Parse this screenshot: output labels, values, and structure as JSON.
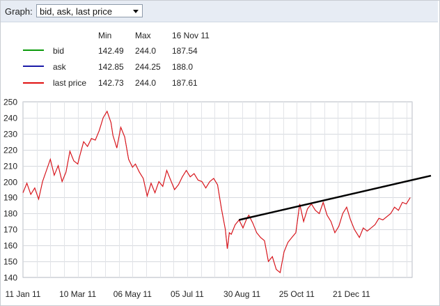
{
  "toolbar": {
    "graph_label": "Graph:",
    "graph_select_value": "bid, ask, last price"
  },
  "legend": {
    "headers": {
      "min": "Min",
      "max": "Max",
      "date": "16 Nov 11"
    },
    "rows": [
      {
        "name": "bid",
        "min": "142.49",
        "max": "244.0",
        "value": "187.54",
        "color": "#0a9a0a"
      },
      {
        "name": "ask",
        "min": "142.85",
        "max": "244.25",
        "value": "188.0",
        "color": "#1a1aa8"
      },
      {
        "name": "last price",
        "min": "142.73",
        "max": "244.0",
        "value": "187.61",
        "color": "#e01010"
      }
    ]
  },
  "chart_data": {
    "type": "line",
    "x_tick_labels": [
      "11 Jan 11",
      "10 Mar 11",
      "06 May 11",
      "05 Jul 11",
      "30 Aug 11",
      "25 Oct 11",
      "21 Dec 11"
    ],
    "y_ticks": [
      140,
      150,
      160,
      170,
      180,
      190,
      200,
      210,
      220,
      230,
      240,
      250
    ],
    "ylim": [
      140,
      250
    ],
    "xlim": [
      "2011-01-11",
      "2012-02-13"
    ],
    "grid": true,
    "series": [
      {
        "name": "last price",
        "color": "#e01010",
        "x": [
          "2011-01-11",
          "2011-01-15",
          "2011-01-19",
          "2011-01-23",
          "2011-01-27",
          "2011-01-31",
          "2011-02-04",
          "2011-02-08",
          "2011-02-12",
          "2011-02-16",
          "2011-02-20",
          "2011-02-24",
          "2011-02-28",
          "2011-03-04",
          "2011-03-08",
          "2011-03-10",
          "2011-03-14",
          "2011-03-18",
          "2011-03-22",
          "2011-03-26",
          "2011-03-30",
          "2011-04-03",
          "2011-04-07",
          "2011-04-11",
          "2011-04-13",
          "2011-04-17",
          "2011-04-21",
          "2011-04-25",
          "2011-04-29",
          "2011-05-03",
          "2011-05-06",
          "2011-05-10",
          "2011-05-14",
          "2011-05-18",
          "2011-05-22",
          "2011-05-26",
          "2011-05-30",
          "2011-06-03",
          "2011-06-07",
          "2011-06-11",
          "2011-06-15",
          "2011-06-19",
          "2011-06-23",
          "2011-06-27",
          "2011-07-01",
          "2011-07-05",
          "2011-07-09",
          "2011-07-13",
          "2011-07-17",
          "2011-07-21",
          "2011-07-25",
          "2011-07-29",
          "2011-08-02",
          "2011-08-06",
          "2011-08-08",
          "2011-08-10",
          "2011-08-12",
          "2011-08-16",
          "2011-08-20",
          "2011-08-24",
          "2011-08-28",
          "2011-08-30",
          "2011-09-03",
          "2011-09-07",
          "2011-09-11",
          "2011-09-15",
          "2011-09-19",
          "2011-09-23",
          "2011-09-27",
          "2011-10-01",
          "2011-10-05",
          "2011-10-09",
          "2011-10-13",
          "2011-10-17",
          "2011-10-21",
          "2011-10-25",
          "2011-10-29",
          "2011-11-02",
          "2011-11-06",
          "2011-11-10",
          "2011-11-14",
          "2011-11-18",
          "2011-11-22",
          "2011-11-26",
          "2011-11-30",
          "2011-12-04",
          "2011-12-08",
          "2011-12-12",
          "2011-12-16",
          "2011-12-21",
          "2011-12-25",
          "2011-12-29",
          "2012-01-02",
          "2012-01-06",
          "2012-01-10",
          "2012-01-14",
          "2012-01-18",
          "2012-01-22",
          "2012-01-26",
          "2012-01-30",
          "2012-02-03",
          "2012-02-07",
          "2012-02-11"
        ],
        "y": [
          193,
          199,
          192,
          196,
          189,
          200,
          207,
          214,
          204,
          210,
          200,
          206,
          219,
          213,
          211,
          216,
          225,
          222,
          227,
          226,
          232,
          240,
          244,
          237,
          229,
          221,
          234,
          228,
          214,
          209,
          211,
          206,
          202,
          191,
          199,
          193,
          200,
          197,
          207,
          201,
          195,
          198,
          203,
          207,
          203,
          205,
          201,
          200,
          196,
          200,
          202,
          198,
          183,
          170,
          158,
          168,
          167,
          173,
          176,
          171,
          177,
          179,
          174,
          168,
          165,
          163,
          150,
          153,
          145,
          143,
          156,
          162,
          165,
          168,
          186,
          175,
          183,
          186,
          182,
          180,
          187,
          179,
          175,
          168,
          172,
          180,
          184,
          176,
          170,
          165,
          171,
          169,
          171,
          173,
          177,
          176,
          178,
          180,
          184,
          182,
          187,
          186,
          190
        ]
      }
    ],
    "trendline": {
      "from": [
        "2011-08-20",
        176
      ],
      "to": [
        "2012-02-13",
        201
      ]
    }
  }
}
